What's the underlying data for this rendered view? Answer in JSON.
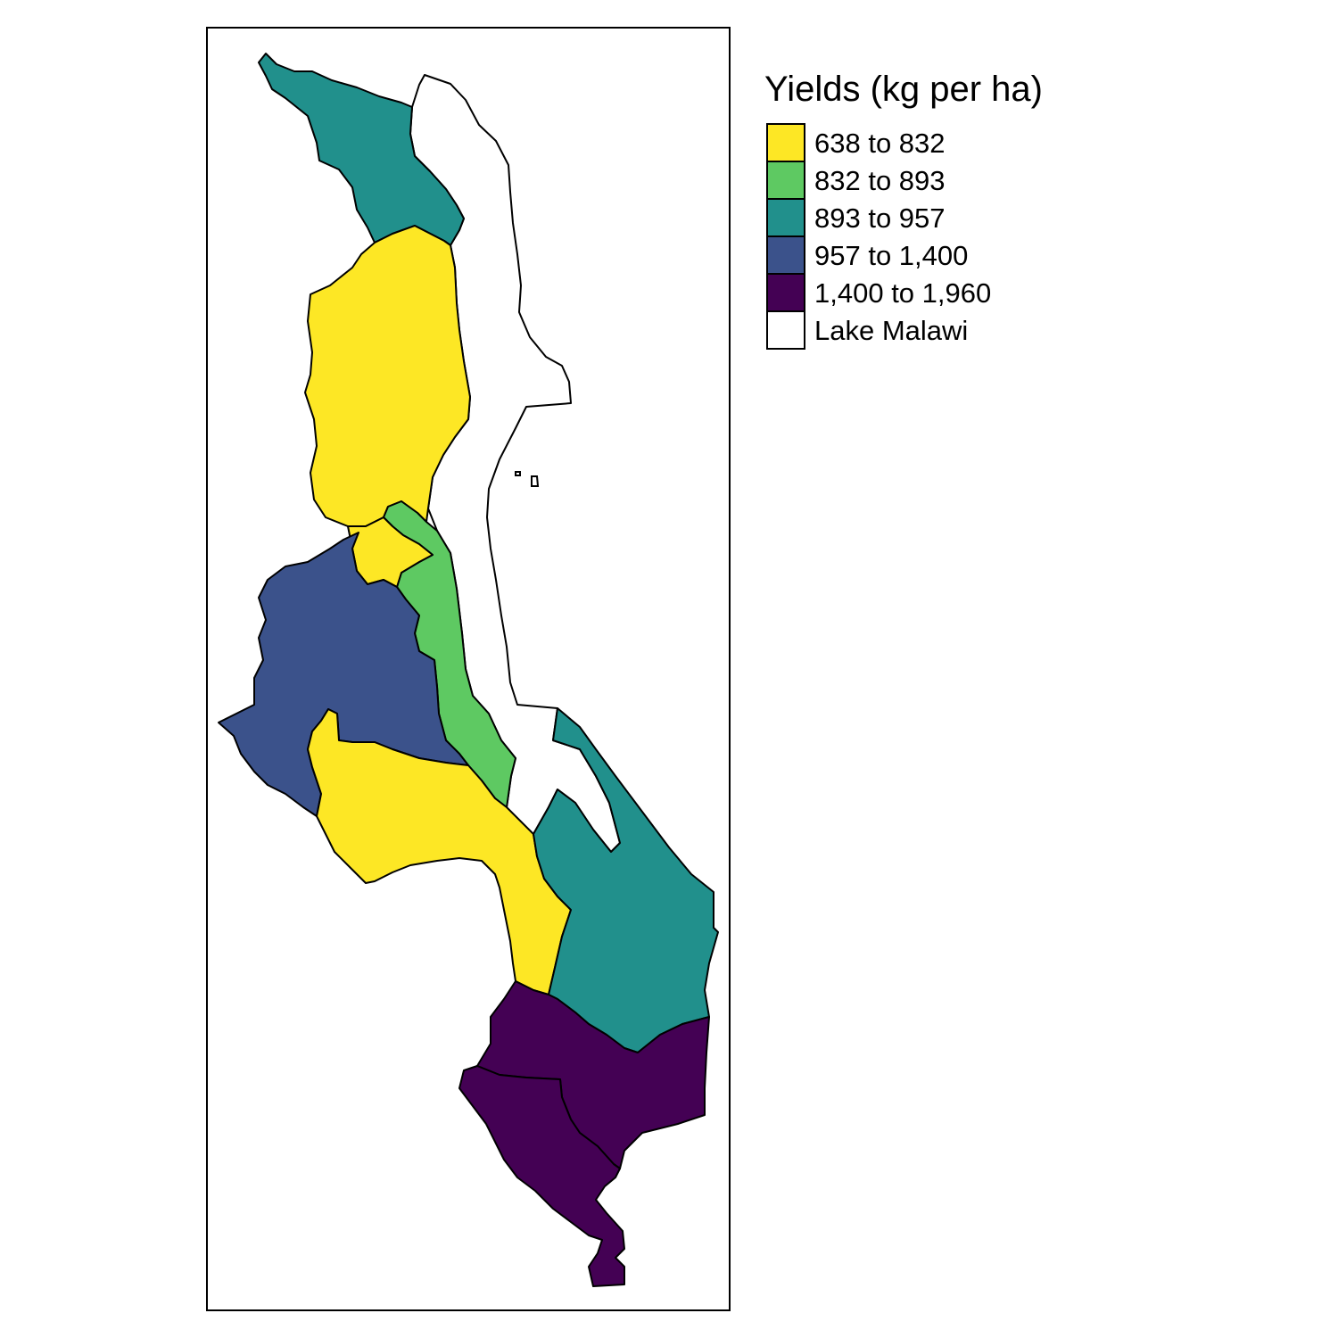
{
  "legend": {
    "title": "Yields (kg per ha)",
    "items": [
      {
        "label": "638 to 832",
        "color": "#FDE725"
      },
      {
        "label": "832 to 893",
        "color": "#5EC962"
      },
      {
        "label": "893 to 957",
        "color": "#21908C"
      },
      {
        "label": "957 to 1,400",
        "color": "#3B528B"
      },
      {
        "label": "1,400 to 1,960",
        "color": "#440154"
      },
      {
        "label": "Lake Malawi",
        "color": "#FFFFFF"
      }
    ]
  },
  "regions": [
    {
      "name": "north-region",
      "class": "893 to 957"
    },
    {
      "name": "north-central-region",
      "class": "638 to 832"
    },
    {
      "name": "lakeshore-central-region",
      "class": "832 to 893"
    },
    {
      "name": "west-central-region",
      "class": "957 to 1,400"
    },
    {
      "name": "south-central-region",
      "class": "638 to 832"
    },
    {
      "name": "east-region",
      "class": "893 to 957"
    },
    {
      "name": "south-east-region",
      "class": "1,400 to 1,960"
    },
    {
      "name": "south-region",
      "class": "1,400 to 1,960"
    },
    {
      "name": "lake-malawi",
      "class": "Lake Malawi"
    }
  ]
}
